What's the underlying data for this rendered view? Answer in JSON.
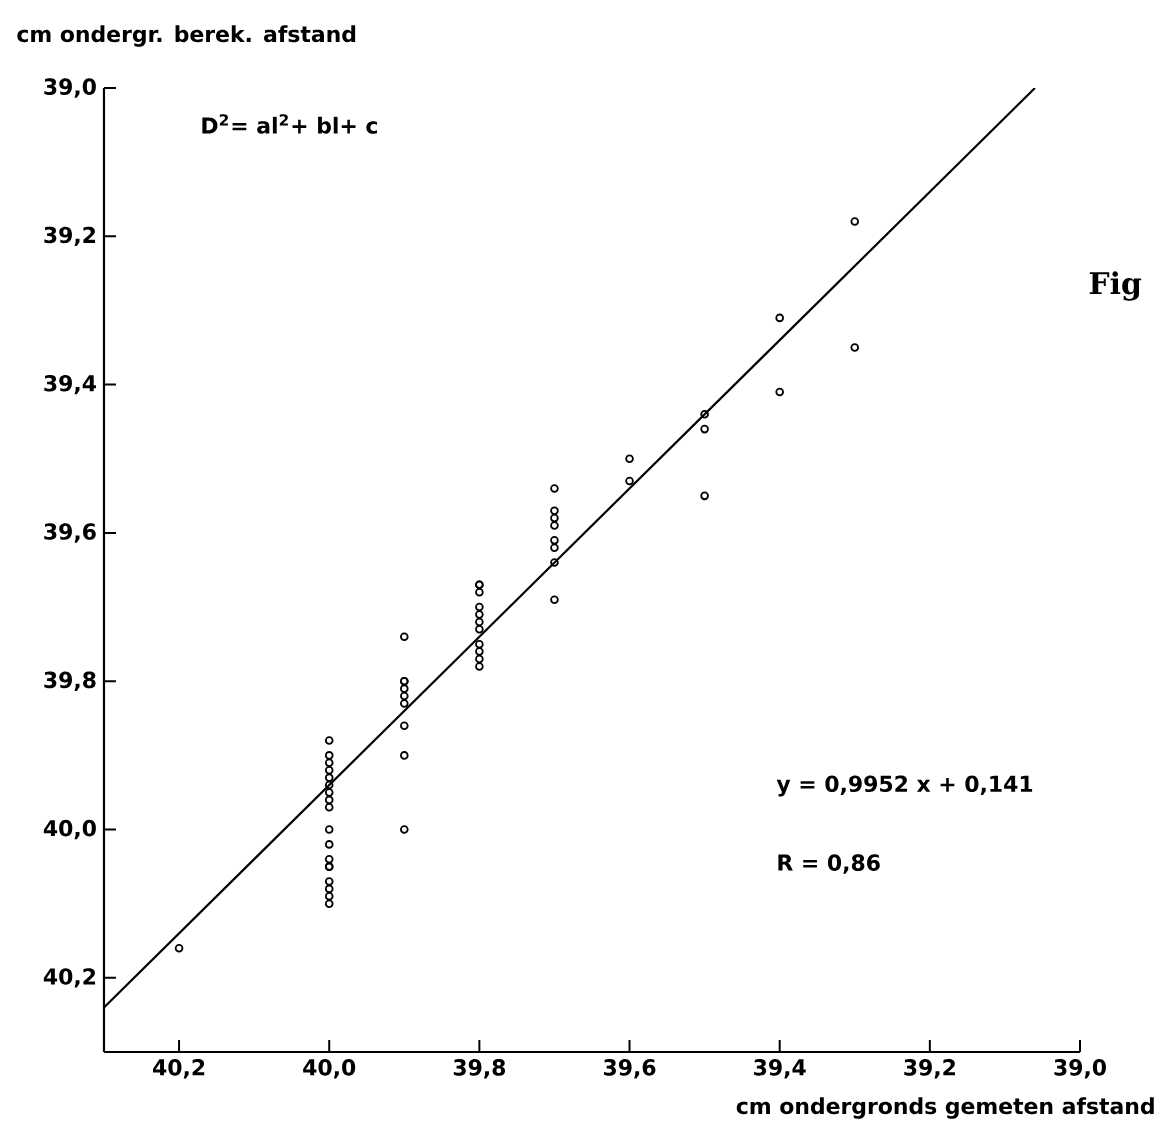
{
  "chart_data": {
    "type": "scatter",
    "xlabel": "cm  ondergronds gemeten afstand",
    "ylabel": "cm ondergr. berek. afstand",
    "annotations": [
      "D$^{2}$= al$^{2}$+ bl+ c",
      "y = 0,9952 x + 0,141",
      "R = 0,86",
      "Fig"
    ],
    "xlim": [
      40.3,
      39.0
    ],
    "ylim": [
      40.3,
      39.0
    ],
    "xticks": [
      {
        "value": 40.2,
        "label": "40,2"
      },
      {
        "value": 40.0,
        "label": "40,0"
      },
      {
        "value": 39.8,
        "label": "39,8"
      },
      {
        "value": 39.6,
        "label": "39,6"
      },
      {
        "value": 39.4,
        "label": "39,4"
      },
      {
        "value": 39.2,
        "label": "39,2"
      },
      {
        "value": 39.0,
        "label": "39,0"
      }
    ],
    "yticks": [
      {
        "value": 39.0,
        "label": "39,0"
      },
      {
        "value": 39.2,
        "label": "39,2"
      },
      {
        "value": 39.4,
        "label": "39,4"
      },
      {
        "value": 39.6,
        "label": "39,6"
      },
      {
        "value": 39.8,
        "label": "39,8"
      },
      {
        "value": 40.0,
        "label": "40,0"
      },
      {
        "value": 40.2,
        "label": "40,2"
      }
    ],
    "marker": "circle",
    "series": [
      {
        "type": "scatter",
        "color": "#000000",
        "x": [
          40.2,
          40.0,
          40.0,
          40.0,
          40.0,
          40.0,
          40.0,
          40.0,
          40.0,
          40.0,
          40.0,
          40.0,
          40.0,
          40.0,
          40.0,
          40.0,
          40.0,
          40.0,
          40.0,
          39.9,
          39.9,
          39.9,
          39.9,
          39.9,
          39.9,
          39.9,
          39.9,
          39.9,
          39.8,
          39.8,
          39.8,
          39.8,
          39.8,
          39.8,
          39.8,
          39.8,
          39.8,
          39.8,
          39.8,
          39.7,
          39.7,
          39.7,
          39.7,
          39.7,
          39.7,
          39.7,
          39.7,
          39.6,
          39.6,
          39.5,
          39.5,
          39.5,
          39.4,
          39.4,
          39.3,
          39.3
        ],
        "values": [
          40.16,
          39.88,
          39.9,
          39.91,
          39.92,
          39.93,
          39.94,
          39.95,
          39.96,
          39.97,
          40.0,
          40.02,
          40.04,
          40.05,
          40.05,
          40.07,
          40.08,
          40.09,
          40.1,
          39.74,
          39.8,
          39.8,
          39.81,
          39.82,
          39.83,
          39.86,
          39.9,
          40.0,
          39.67,
          39.67,
          39.68,
          39.7,
          39.71,
          39.72,
          39.73,
          39.75,
          39.76,
          39.77,
          39.78,
          39.54,
          39.57,
          39.58,
          39.59,
          39.61,
          39.62,
          39.64,
          39.69,
          39.5,
          39.53,
          39.44,
          39.46,
          39.55,
          39.31,
          39.41,
          39.18,
          39.35
        ]
      },
      {
        "type": "line",
        "color": "#000000",
        "marker": "none",
        "x": [
          40.3,
          39.06
        ],
        "values": [
          40.24,
          39.0
        ]
      }
    ]
  }
}
